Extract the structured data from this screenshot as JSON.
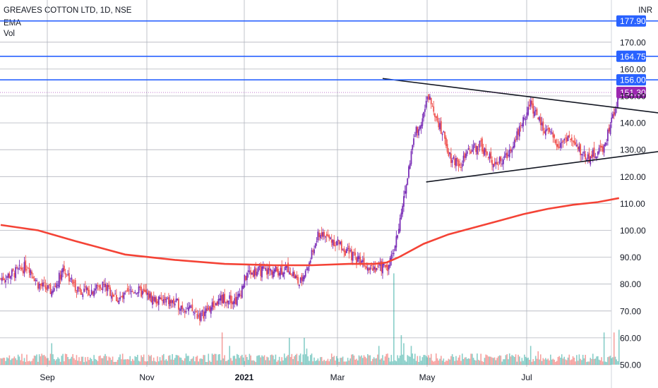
{
  "header": {
    "title": "GREAVES COTTON LTD, 1D, NSE",
    "indicator_1": "EMA",
    "indicator_2": "Vol",
    "currency": "INR"
  },
  "colors": {
    "up": "#7b2fb7",
    "down": "#ef5350",
    "ema": "#f44336",
    "hline": "#2962ff",
    "vol_up": "#26a69a",
    "vol_down": "#ef5350",
    "price_tag": "#9c27b0",
    "grid": "#b2b5be"
  },
  "chart_data": {
    "type": "candlestick",
    "title": "GREAVES COTTON LTD, 1D, NSE",
    "y_unit": "INR",
    "ylim": [
      50,
      183
    ],
    "y_ticks": [
      50,
      60,
      70,
      80,
      90,
      100,
      110,
      120,
      130,
      140,
      150,
      160,
      170
    ],
    "x_ticks": [
      "Sep",
      "Nov",
      "2021",
      "Mar",
      "May",
      "Jul"
    ],
    "grid": true,
    "horizontal_levels": [
      {
        "label": "177.90",
        "value": 177.9
      },
      {
        "label": "164.75",
        "value": 164.75
      },
      {
        "label": "156.00",
        "value": 156.0
      }
    ],
    "last_price": {
      "label": "151.30",
      "value": 151.3
    },
    "price_anchors": [
      [
        0,
        82
      ],
      [
        10,
        84
      ],
      [
        22,
        87
      ],
      [
        30,
        80
      ],
      [
        42,
        77
      ],
      [
        50,
        86
      ],
      [
        60,
        79
      ],
      [
        70,
        77
      ],
      [
        82,
        80
      ],
      [
        95,
        74
      ],
      [
        108,
        78
      ],
      [
        125,
        74
      ],
      [
        140,
        73
      ],
      [
        150,
        71
      ],
      [
        160,
        68
      ],
      [
        168,
        71
      ],
      [
        180,
        75
      ],
      [
        190,
        74
      ],
      [
        198,
        84
      ],
      [
        210,
        85
      ],
      [
        222,
        85
      ],
      [
        232,
        86
      ],
      [
        240,
        80
      ],
      [
        248,
        88
      ],
      [
        256,
        99
      ],
      [
        264,
        97
      ],
      [
        272,
        95
      ],
      [
        280,
        91
      ],
      [
        290,
        89
      ],
      [
        296,
        87
      ],
      [
        304,
        86
      ],
      [
        312,
        87
      ],
      [
        320,
        100
      ],
      [
        326,
        117
      ],
      [
        332,
        135
      ],
      [
        338,
        141
      ],
      [
        344,
        150
      ],
      [
        350,
        143
      ],
      [
        356,
        135
      ],
      [
        362,
        127
      ],
      [
        370,
        125
      ],
      [
        378,
        130
      ],
      [
        386,
        132
      ],
      [
        392,
        127
      ],
      [
        400,
        125
      ],
      [
        406,
        127
      ],
      [
        414,
        135
      ],
      [
        420,
        141
      ],
      [
        426,
        147
      ],
      [
        432,
        141
      ],
      [
        440,
        136
      ],
      [
        448,
        132
      ],
      [
        456,
        135
      ],
      [
        464,
        130
      ],
      [
        472,
        127
      ],
      [
        480,
        129
      ],
      [
        486,
        132
      ],
      [
        490,
        140
      ],
      [
        494,
        144
      ],
      [
        497,
        151.3
      ]
    ],
    "ema_points": [
      [
        0,
        102
      ],
      [
        30,
        100
      ],
      [
        60,
        96
      ],
      [
        100,
        91
      ],
      [
        140,
        89
      ],
      [
        180,
        87.5
      ],
      [
        220,
        87
      ],
      [
        250,
        87
      ],
      [
        280,
        87.5
      ],
      [
        300,
        87.5
      ],
      [
        310,
        88
      ],
      [
        320,
        90
      ],
      [
        340,
        95
      ],
      [
        360,
        98.5
      ],
      [
        380,
        101
      ],
      [
        400,
        103.5
      ],
      [
        420,
        106
      ],
      [
        440,
        108
      ],
      [
        460,
        109.5
      ],
      [
        480,
        110.5
      ],
      [
        497,
        112
      ]
    ],
    "trendlines": [
      {
        "name": "upper",
        "from": [
          307,
          156.5
        ],
        "to": [
          532,
          143.5
        ]
      },
      {
        "name": "lower",
        "from": [
          342,
          118
        ],
        "to": [
          532,
          129.5
        ]
      }
    ],
    "volume_spikes": [
      [
        41,
        8
      ],
      [
        66,
        3
      ],
      [
        178,
        12
      ],
      [
        184,
        7
      ],
      [
        232,
        10
      ],
      [
        244,
        10
      ],
      [
        246,
        6
      ],
      [
        304,
        7
      ],
      [
        316,
        34
      ],
      [
        322,
        11
      ],
      [
        324,
        8
      ],
      [
        330,
        7
      ],
      [
        426,
        7
      ],
      [
        432,
        5
      ],
      [
        485,
        12
      ],
      [
        493,
        12
      ],
      [
        497,
        13
      ]
    ],
    "volume_scale_note": "bars drawn from the bottom axis, relative height units",
    "series": []
  }
}
